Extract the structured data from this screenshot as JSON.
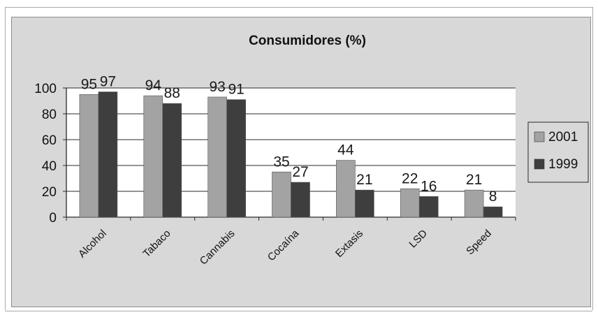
{
  "chart_data": {
    "type": "bar",
    "title": "Consumidores (%)",
    "categories": [
      "Alcohol",
      "Tabaco",
      "Cannabis",
      "Cocaína",
      "Extasis",
      "LSD",
      "Speed"
    ],
    "series": [
      {
        "name": "2001",
        "values": [
          95,
          94,
          93,
          35,
          44,
          22,
          21
        ],
        "color": "#a3a3a3"
      },
      {
        "name": "1999",
        "values": [
          97,
          88,
          91,
          27,
          21,
          16,
          8
        ],
        "color": "#3e3e3e"
      }
    ],
    "ylim": [
      0,
      100
    ],
    "yticks": [
      0,
      20,
      40,
      60,
      80,
      100
    ],
    "plot_background": "#ffffff",
    "chart_background": "#d8d8d8",
    "grid": true,
    "legend": "right"
  }
}
